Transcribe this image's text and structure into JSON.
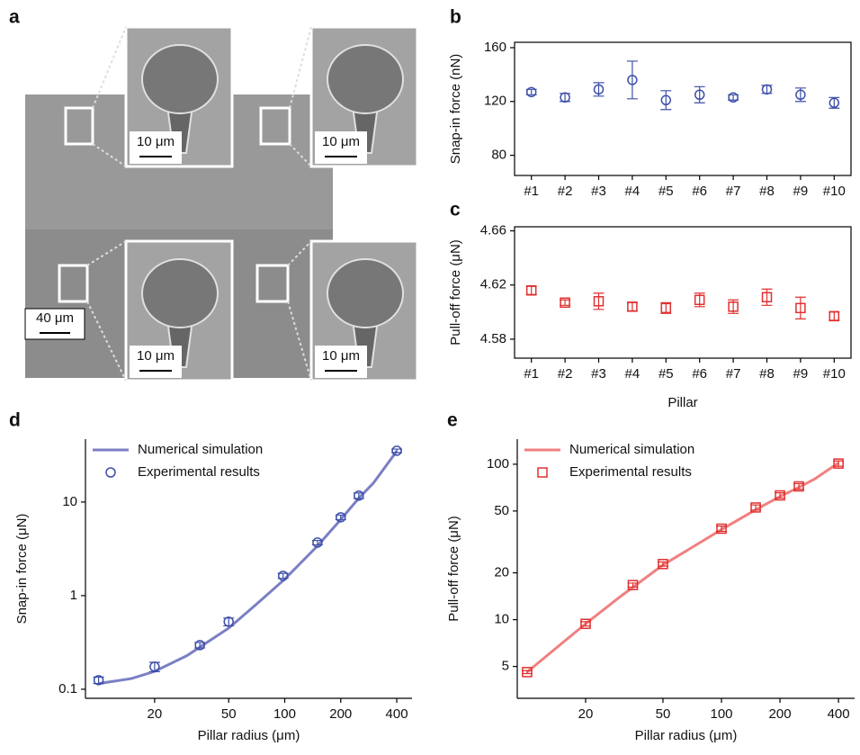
{
  "panel_a": {
    "label": "a",
    "scale_bars": [
      "10 μm",
      "10 μm",
      "10 μm",
      "10 μm",
      "40 μm"
    ]
  },
  "chart_data": [
    {
      "type": "errorbar",
      "label": "b",
      "ylabel": "Snap-in force (nN)",
      "categories": [
        "#1",
        "#2",
        "#3",
        "#4",
        "#5",
        "#6",
        "#7",
        "#8",
        "#9",
        "#10"
      ],
      "values": [
        127,
        123,
        129,
        136,
        121,
        125,
        123,
        129,
        125,
        119
      ],
      "errors": [
        2,
        3,
        5,
        14,
        7,
        6,
        2,
        3,
        5,
        4
      ],
      "color": "#3d4fa8",
      "marker": "circle",
      "ylim": [
        65,
        164
      ],
      "yticks": [
        80,
        120,
        160
      ]
    },
    {
      "type": "errorbar",
      "label": "c",
      "ylabel": "Pull-off force (μN)",
      "xlabel": "Pillar",
      "categories": [
        "#1",
        "#2",
        "#3",
        "#4",
        "#5",
        "#6",
        "#7",
        "#8",
        "#9",
        "#10"
      ],
      "values": [
        4.616,
        4.607,
        4.608,
        4.604,
        4.603,
        4.609,
        4.604,
        4.611,
        4.603,
        4.597
      ],
      "errors": [
        0.003,
        0.002,
        0.006,
        0.003,
        0.004,
        0.005,
        0.005,
        0.006,
        0.008,
        0.003
      ],
      "color": "#e03030",
      "marker": "square",
      "ylim": [
        4.566,
        4.663
      ],
      "yticks": [
        4.58,
        4.62,
        4.66
      ]
    },
    {
      "type": "line",
      "label": "d",
      "ylabel": "Snap-in force (μN)",
      "xlabel": "Pillar radius (μm)",
      "xscale": "log",
      "yscale": "log",
      "legend": "upper left",
      "xlim": [
        8.5,
        483
      ],
      "ylim": [
        0.08,
        47
      ],
      "xticks": [
        20,
        50,
        100,
        200,
        400
      ],
      "yticks": [
        0.1,
        1,
        10
      ],
      "series": [
        {
          "name": "Numerical simulation",
          "kind": "line",
          "color": "#7b7fc4",
          "x": [
            10,
            15,
            20,
            30,
            50,
            70,
            100,
            150,
            200,
            250,
            300,
            400
          ],
          "values": [
            0.115,
            0.13,
            0.155,
            0.23,
            0.45,
            0.8,
            1.5,
            3.4,
            6.5,
            11,
            16,
            35
          ]
        },
        {
          "name": "Experimental results",
          "kind": "marker",
          "marker": "circle",
          "color": "#3d4fa8",
          "x": [
            10,
            20,
            35,
            50,
            98,
            150,
            200,
            250,
            400
          ],
          "values": [
            0.125,
            0.174,
            0.296,
            0.526,
            1.63,
            3.69,
            6.87,
            11.7,
            35.3
          ],
          "errors": [
            0.01,
            0.02,
            0.02,
            0.05,
            0.1,
            0.2,
            0.4,
            0.8,
            1.5
          ]
        }
      ]
    },
    {
      "type": "line",
      "label": "e",
      "ylabel": "Pull-off force (μN)",
      "xlabel": "Pillar radius (μm)",
      "xscale": "log",
      "yscale": "log",
      "legend": "upper left",
      "xlim": [
        8.9,
        484
      ],
      "ylim": [
        3.12,
        145
      ],
      "xticks": [
        20,
        50,
        100,
        200,
        400
      ],
      "yticks": [
        5,
        10,
        20,
        50,
        100
      ],
      "series": [
        {
          "name": "Numerical simulation",
          "kind": "line",
          "color": "#f08080",
          "x": [
            10,
            15,
            20,
            30,
            50,
            70,
            100,
            150,
            200,
            250,
            300,
            400
          ],
          "values": [
            4.6,
            7,
            9.4,
            14,
            22.5,
            29,
            38,
            51,
            62,
            71,
            80,
            102
          ]
        },
        {
          "name": "Experimental results",
          "kind": "marker",
          "marker": "square",
          "color": "#e03030",
          "x": [
            10,
            20,
            35,
            50,
            100,
            150,
            200,
            250,
            400
          ],
          "values": [
            4.6,
            9.4,
            16.7,
            22.8,
            38.5,
            52.7,
            63,
            72,
            101
          ],
          "errors": [
            0.1,
            0.3,
            0.5,
            0.7,
            1.5,
            2,
            2.5,
            3,
            4
          ]
        }
      ]
    }
  ]
}
